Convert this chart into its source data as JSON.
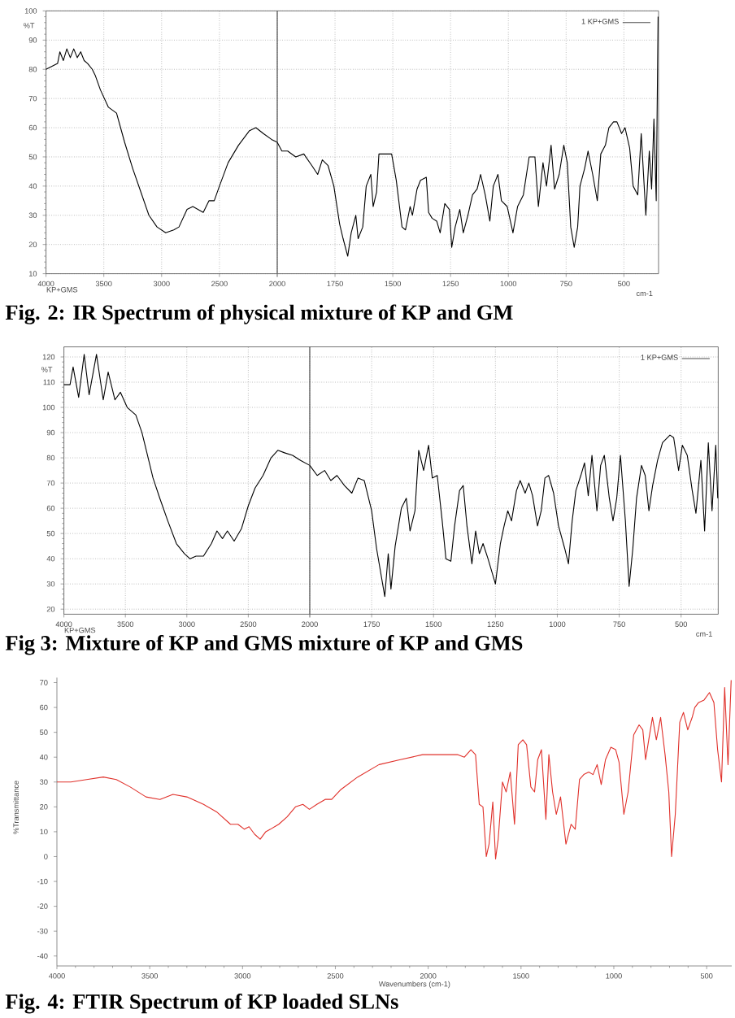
{
  "chart_data": [
    {
      "type": "line",
      "title": "Fig. 2: IR Spectrum of physical mixture of KP and GM",
      "ylabel": "%T",
      "annotations": [
        "KP+GMS"
      ],
      "series": [
        {
          "color": "#000000",
          "x": [
            4000,
            3950,
            3900,
            3880,
            3850,
            3820,
            3790,
            3760,
            3730,
            3700,
            3670,
            3640,
            3600,
            3575,
            3530,
            3460,
            3390,
            3320,
            3250,
            3180,
            3110,
            3040,
            2965,
            2895,
            2850,
            2780,
            2730,
            2685,
            2640,
            2590,
            2545,
            2500,
            2425,
            2335,
            2240,
            2185,
            2120,
            2050,
            2000
          ],
          "values": [
            80,
            81,
            82,
            86,
            83,
            87,
            84,
            87,
            84,
            86,
            83,
            82,
            80,
            78,
            73,
            67,
            65,
            55,
            46,
            38,
            30,
            26,
            24,
            25,
            26,
            32,
            33,
            32,
            31,
            35,
            35,
            40,
            48,
            54,
            59,
            60,
            58,
            56,
            55
          ]
        }
      ],
      "xlim": [
        4000,
        2000
      ],
      "xticks": [
        4000,
        3500,
        3000,
        2500,
        {
          "value": 2000,
          "label": null
        }
      ],
      "ylim": [
        10,
        100
      ],
      "yticks": [
        10,
        20,
        30,
        40,
        50,
        60,
        70,
        80,
        90,
        100
      ],
      "grid": true
    },
    {
      "type": "line",
      "xlabel": "cm-1",
      "series": [
        {
          "name": "1 KP+GMS",
          "color": "#000000",
          "x": [
            2000,
            1980,
            1955,
            1920,
            1885,
            1850,
            1825,
            1805,
            1780,
            1755,
            1730,
            1715,
            1695,
            1680,
            1660,
            1650,
            1630,
            1615,
            1595,
            1585,
            1570,
            1560,
            1535,
            1505,
            1485,
            1460,
            1445,
            1425,
            1415,
            1395,
            1380,
            1355,
            1345,
            1330,
            1310,
            1295,
            1275,
            1255,
            1245,
            1230,
            1210,
            1195,
            1175,
            1155,
            1135,
            1120,
            1100,
            1080,
            1065,
            1045,
            1030,
            1005,
            980,
            960,
            935,
            910,
            885,
            870,
            850,
            835,
            815,
            800,
            780,
            760,
            745,
            730,
            715,
            700,
            690,
            670,
            655,
            635,
            615,
            600,
            580,
            565,
            545,
            530,
            510,
            495,
            475,
            460,
            440,
            425,
            405,
            390,
            380,
            370,
            360,
            352
          ],
          "values": [
            55,
            52,
            52,
            50,
            51,
            47,
            44,
            49,
            47,
            40,
            27,
            22,
            16,
            24,
            30,
            22,
            26,
            40,
            44,
            33,
            38,
            51,
            51,
            51,
            42,
            26,
            25,
            33,
            30,
            39,
            42,
            43,
            31,
            29,
            28,
            24,
            34,
            32,
            19,
            26,
            32,
            24,
            30,
            37,
            39,
            44,
            37,
            28,
            40,
            44,
            35,
            33,
            24,
            33,
            37,
            50,
            50,
            33,
            48,
            40,
            54,
            39,
            44,
            54,
            48,
            26,
            19,
            26,
            40,
            46,
            52,
            44,
            35,
            51,
            54,
            60,
            62,
            62,
            58,
            60,
            53,
            40,
            37,
            58,
            30,
            52,
            39,
            63,
            35,
            98
          ]
        }
      ],
      "xlim": [
        2000,
        350
      ],
      "xticks": [
        2000,
        1750,
        1500,
        1250,
        1000,
        750,
        500
      ],
      "ylim": [
        10,
        100
      ],
      "yticks": [
        10,
        20,
        30,
        40,
        50,
        60,
        70,
        80,
        90,
        100
      ],
      "grid": true,
      "legend": "top right",
      "tick_labels": "x"
    },
    {
      "type": "line",
      "title": "Fig 3: Mixture of KP and GMS  mixture of KP and GMS",
      "ylabel": "%T",
      "annotations": [
        "KP+GMS"
      ],
      "series": [
        {
          "color": "#000000",
          "x": [
            4000,
            3950,
            3925,
            3880,
            3835,
            3795,
            3735,
            3680,
            3640,
            3585,
            3540,
            3485,
            3415,
            3365,
            3320,
            3275,
            3220,
            3155,
            3085,
            3020,
            2975,
            2925,
            2865,
            2800,
            2755,
            2710,
            2670,
            2615,
            2555,
            2500,
            2445,
            2380,
            2315,
            2260,
            2205,
            2140,
            2075,
            2000
          ],
          "values": [
            109,
            109,
            116,
            104,
            121,
            105,
            121,
            103,
            114,
            103,
            106,
            100,
            97,
            90,
            81,
            72,
            64,
            55,
            46,
            42,
            40,
            41,
            41,
            46,
            51,
            48,
            51,
            47,
            52,
            61,
            68,
            73,
            80,
            83,
            82,
            81,
            79,
            77
          ]
        }
      ],
      "xlim": [
        4000,
        2000
      ],
      "xticks": [
        4000,
        3500,
        3000,
        2500,
        {
          "value": 2000,
          "label": null
        }
      ],
      "ylim": [
        18,
        124
      ],
      "yticks": [
        20,
        30,
        40,
        50,
        60,
        70,
        80,
        90,
        100,
        110,
        120
      ],
      "grid": true
    },
    {
      "type": "line",
      "xlabel": "cm-1",
      "series": [
        {
          "name": "1 KP+GMS",
          "color": "#000000",
          "x": [
            2000,
            1970,
            1940,
            1915,
            1890,
            1860,
            1830,
            1805,
            1780,
            1750,
            1730,
            1697,
            1683,
            1672,
            1655,
            1630,
            1610,
            1595,
            1575,
            1560,
            1540,
            1520,
            1505,
            1485,
            1465,
            1450,
            1430,
            1415,
            1395,
            1380,
            1365,
            1345,
            1330,
            1315,
            1300,
            1280,
            1265,
            1250,
            1230,
            1215,
            1200,
            1185,
            1165,
            1150,
            1130,
            1115,
            1100,
            1080,
            1065,
            1050,
            1035,
            1015,
            995,
            970,
            955,
            940,
            925,
            905,
            890,
            875,
            860,
            840,
            825,
            810,
            790,
            775,
            760,
            745,
            725,
            710,
            695,
            680,
            660,
            645,
            630,
            615,
            595,
            575,
            545,
            530,
            510,
            495,
            475,
            455,
            440,
            420,
            405,
            390,
            375,
            360,
            352
          ],
          "values": [
            77,
            73,
            75,
            71,
            73,
            69,
            66,
            72,
            71,
            59,
            44,
            25,
            42,
            28,
            45,
            60,
            64,
            51,
            59,
            83,
            75,
            85,
            72,
            73,
            55,
            40,
            39,
            53,
            67,
            69,
            53,
            38,
            51,
            42,
            46,
            40,
            35,
            30,
            46,
            53,
            59,
            55,
            67,
            71,
            66,
            70,
            65,
            53,
            59,
            72,
            73,
            66,
            53,
            44,
            38,
            55,
            67,
            73,
            78,
            65,
            81,
            59,
            77,
            81,
            64,
            55,
            64,
            81,
            55,
            29,
            44,
            64,
            77,
            73,
            59,
            69,
            79,
            86,
            89,
            88,
            75,
            85,
            81,
            67,
            58,
            79,
            51,
            86,
            59,
            85,
            64
          ]
        }
      ],
      "xlim": [
        2000,
        350
      ],
      "xticks": [
        2000,
        1750,
        1500,
        1250,
        1000,
        750,
        500
      ],
      "ylim": [
        18,
        124
      ],
      "yticks": [
        20,
        30,
        40,
        50,
        60,
        70,
        80,
        90,
        100,
        110,
        120
      ],
      "grid": true,
      "legend": "top right",
      "tick_labels": "x"
    },
    {
      "type": "line",
      "title": "Fig. 4: FTIR Spectrum of KP loaded SLNs",
      "xlabel": "Wavenumbers (cm-1)",
      "ylabel": "%Transmittance",
      "series": [
        {
          "color": "#e0302a",
          "x": [
            4000,
            3925,
            3840,
            3750,
            3680,
            3605,
            3520,
            3445,
            3375,
            3300,
            3210,
            3140,
            3065,
            3025,
            2990,
            2965,
            2935,
            2905,
            2875,
            2850,
            2805,
            2760,
            2715,
            2675,
            2640,
            2600,
            2555,
            2520,
            2470,
            2380,
            2265,
            2150,
            2030,
            1915,
            1840,
            1805,
            1770,
            1745,
            1725,
            1705,
            1687,
            1672,
            1652,
            1637,
            1623,
            1600,
            1580,
            1558,
            1535,
            1515,
            1490,
            1470,
            1447,
            1427,
            1410,
            1390,
            1366,
            1350,
            1330,
            1310,
            1287,
            1258,
            1230,
            1208,
            1185,
            1162,
            1135,
            1112,
            1090,
            1068,
            1045,
            1016,
            990,
            972,
            946,
            923,
            893,
            864,
            844,
            829,
            812,
            792,
            771,
            748,
            724,
            704,
            689,
            669,
            645,
            625,
            602,
            578,
            564,
            543,
            514,
            485,
            461,
            441,
            420,
            403,
            385,
            368
          ],
          "values": [
            30,
            30,
            31,
            32,
            31,
            28,
            24,
            23,
            25,
            24,
            21,
            18,
            13,
            13,
            11,
            12,
            9,
            7,
            10,
            11,
            13,
            16,
            20,
            21,
            19,
            21,
            23,
            23,
            27,
            32,
            37,
            39,
            41,
            41,
            41,
            40,
            43,
            41,
            21,
            20,
            0,
            5,
            22,
            -1,
            7,
            30,
            26,
            34,
            13,
            45,
            47,
            45,
            28,
            26,
            39,
            43,
            15,
            41,
            26,
            17,
            24,
            5,
            13,
            11,
            31,
            33,
            34,
            33,
            37,
            29,
            39,
            44,
            43,
            38,
            17,
            26,
            49,
            53,
            51,
            39,
            47,
            56,
            47,
            56,
            41,
            26,
            0,
            17,
            54,
            58,
            51,
            56,
            60,
            62,
            63,
            66,
            62,
            43,
            30,
            68,
            37,
            71
          ]
        }
      ],
      "xlim": [
        4000,
        365
      ],
      "xticks": [
        4000,
        3500,
        3000,
        2500,
        2000,
        1500,
        1000,
        500
      ],
      "ylim": [
        -44,
        72
      ],
      "yticks": [
        -40,
        -30,
        -20,
        -10,
        0,
        10,
        20,
        30,
        40,
        50,
        60,
        70
      ]
    }
  ]
}
